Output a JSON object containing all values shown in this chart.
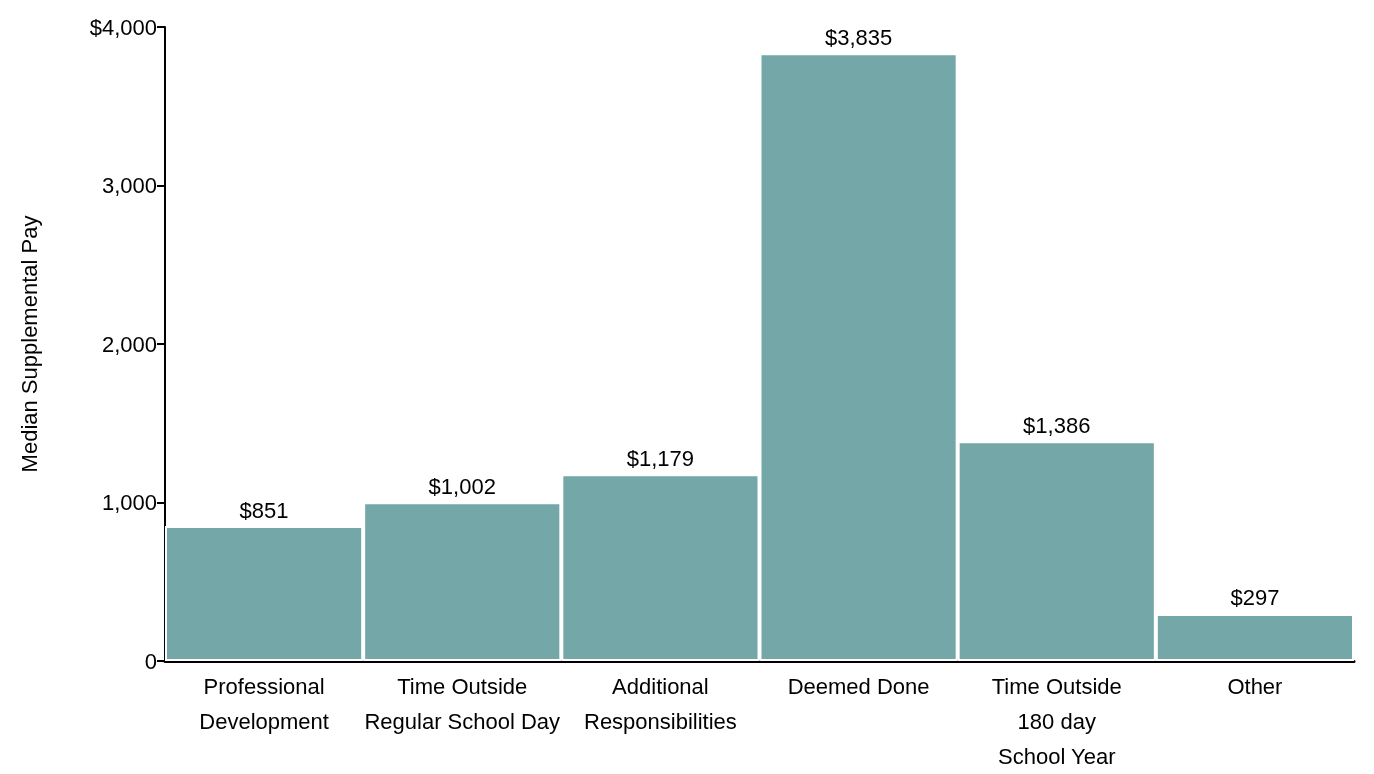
{
  "chart_data": {
    "type": "bar",
    "ylabel": "Median Supplemental Pay",
    "categories": [
      "Professional\nDevelopment",
      "Time Outside\nRegular School Day",
      "Additional\nResponsibilities",
      "Deemed Done",
      "Time Outside\n180 day\nSchool Year",
      "Other"
    ],
    "values": [
      851,
      1002,
      1179,
      3835,
      1386,
      297
    ],
    "value_labels": [
      "$851",
      "$1,002",
      "$1,179",
      "$3,835",
      "$1,386",
      "$297"
    ],
    "color": "#73a7a8",
    "ylim": [
      0,
      4000
    ],
    "yticks": [
      0,
      {
        "value": 1000,
        "label": "1,000"
      },
      {
        "value": 2000,
        "label": "2,000"
      },
      {
        "value": 3000,
        "label": "3,000"
      },
      {
        "value": 4000,
        "label": "$4,000"
      }
    ],
    "grid": false
  }
}
